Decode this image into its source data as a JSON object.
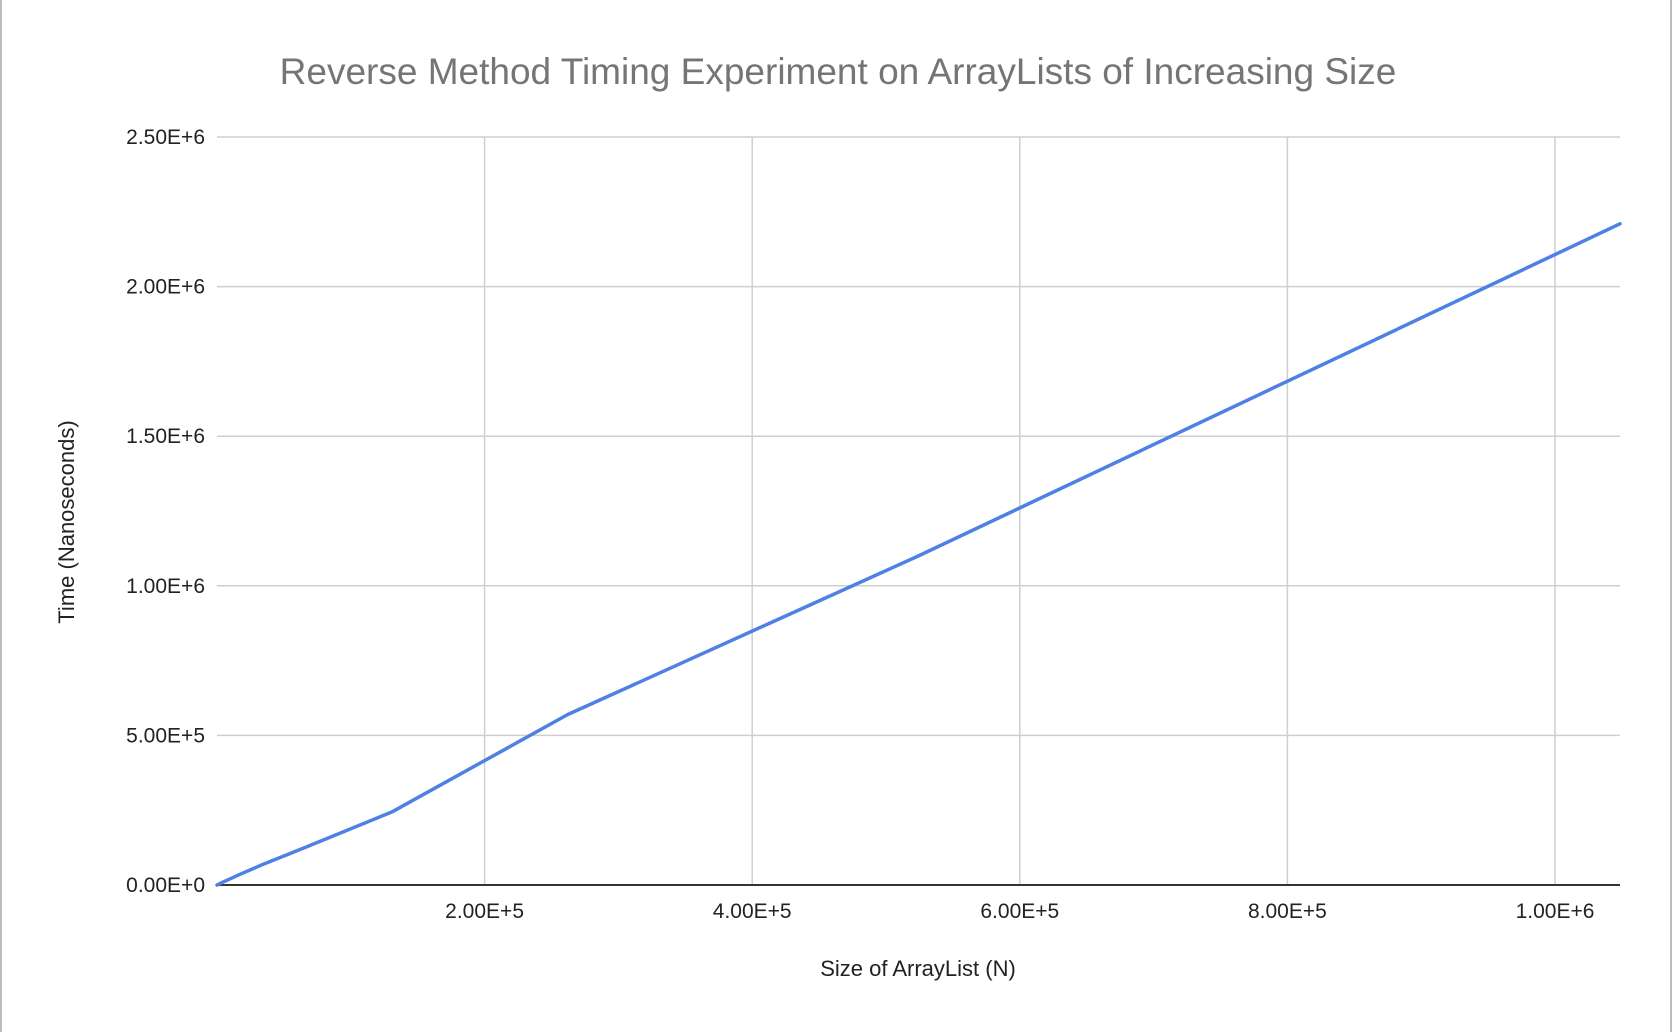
{
  "chart_data": {
    "type": "line",
    "title": "Reverse Method Timing Experiment on ArrayLists of Increasing Size",
    "xlabel": "Size of ArrayList (N)",
    "ylabel": "Time (Nanoseconds)",
    "xlim": [
      0,
      1048576
    ],
    "ylim": [
      0,
      2500000
    ],
    "x_ticks": [
      200000,
      400000,
      600000,
      800000,
      1000000
    ],
    "x_tick_labels": [
      "2.00E+5",
      "4.00E+5",
      "6.00E+5",
      "8.00E+5",
      "1.00E+6"
    ],
    "y_ticks": [
      0,
      500000,
      1000000,
      1500000,
      2000000,
      2500000
    ],
    "y_tick_labels": [
      "0.00E+0",
      "5.00E+5",
      "1.00E+6",
      "1.50E+6",
      "2.00E+6",
      "2.50E+6"
    ],
    "grid": true,
    "legend": "none",
    "series": [
      {
        "color": "#4f81e4",
        "x": [
          1024,
          2048,
          4096,
          8192,
          16384,
          32768,
          65536,
          131072,
          262144,
          524288,
          1048576
        ],
        "y": [
          2200,
          4500,
          9000,
          17500,
          34000,
          66000,
          125000,
          245000,
          570000,
          1100000,
          2210000
        ]
      }
    ]
  }
}
